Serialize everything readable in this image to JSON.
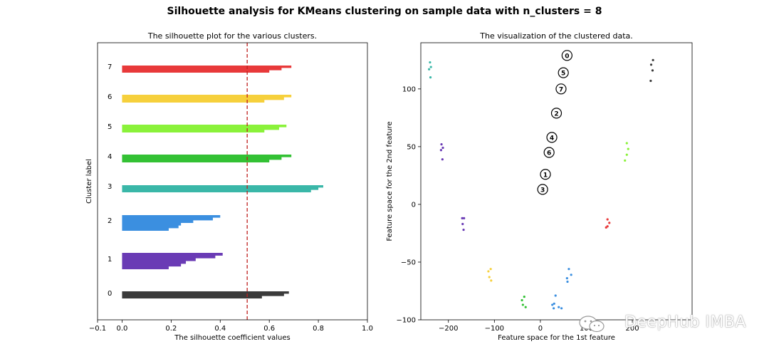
{
  "suptitle": "Silhouette analysis for KMeans clustering on sample data with n_clusters = 8",
  "watermark": "DeepHub IMBA",
  "chart_data": [
    {
      "type": "area",
      "title": "The silhouette plot for the various clusters.",
      "xlabel": "The silhouette coefficient values",
      "ylabel": "Cluster label",
      "xlim": [
        -0.1,
        1.0
      ],
      "xticks": [
        "−0.1",
        "0.0",
        "0.2",
        "0.4",
        "0.6",
        "0.8",
        "1.0"
      ],
      "xtick_values": [
        -0.1,
        0.0,
        0.2,
        0.4,
        0.6,
        0.8,
        1.0
      ],
      "average_silhouette": 0.51,
      "average_line_color": "#c0211f",
      "clusters": [
        {
          "label": "0",
          "color": "#3b3b3b",
          "size": 3,
          "values": [
            0.68,
            0.66,
            0.57
          ]
        },
        {
          "label": "1",
          "color": "#6a3bb5",
          "size": 6,
          "values": [
            0.41,
            0.38,
            0.3,
            0.26,
            0.24,
            0.19
          ]
        },
        {
          "label": "2",
          "color": "#3b8fe0",
          "size": 6,
          "values": [
            0.4,
            0.37,
            0.29,
            0.24,
            0.23,
            0.19
          ]
        },
        {
          "label": "3",
          "color": "#3ab7a8",
          "size": 3,
          "values": [
            0.82,
            0.8,
            0.77
          ]
        },
        {
          "label": "4",
          "color": "#33c134",
          "size": 3,
          "values": [
            0.69,
            0.65,
            0.6
          ]
        },
        {
          "label": "5",
          "color": "#8af23a",
          "size": 3,
          "values": [
            0.67,
            0.64,
            0.58
          ]
        },
        {
          "label": "6",
          "color": "#f6d03c",
          "size": 3,
          "values": [
            0.69,
            0.66,
            0.58
          ]
        },
        {
          "label": "7",
          "color": "#e8393a",
          "size": 3,
          "values": [
            0.69,
            0.65,
            0.6
          ]
        }
      ],
      "legend": "none",
      "grid": false
    },
    {
      "type": "scatter",
      "title": "The visualization of the clustered data.",
      "xlabel": "Feature space for the 1st feature",
      "ylabel": "Feature space for the 2nd feature",
      "xlim": [
        -260,
        330
      ],
      "ylim": [
        -100,
        140
      ],
      "xticks": [
        "−200",
        "−100",
        "0",
        "100",
        "200"
      ],
      "xtick_values": [
        -200,
        -100,
        0,
        100,
        200
      ],
      "yticks": [
        "−100",
        "−50",
        "0",
        "50",
        "100"
      ],
      "ytick_values": [
        -100,
        -50,
        0,
        50,
        100
      ],
      "grid": false,
      "legend": "none",
      "points": [
        {
          "x": -240,
          "y": 123,
          "c": 3
        },
        {
          "x": -238,
          "y": 119,
          "c": 3
        },
        {
          "x": -242,
          "y": 117,
          "c": 3
        },
        {
          "x": -239,
          "y": 110,
          "c": 3
        },
        {
          "x": -215,
          "y": 52,
          "c": 1
        },
        {
          "x": -212,
          "y": 49,
          "c": 1
        },
        {
          "x": -216,
          "y": 47,
          "c": 1
        },
        {
          "x": -213,
          "y": 39,
          "c": 1
        },
        {
          "x": -170,
          "y": -12,
          "c": 1
        },
        {
          "x": -166,
          "y": -12,
          "c": 1
        },
        {
          "x": -169,
          "y": -17,
          "c": 1
        },
        {
          "x": -167,
          "y": -22,
          "c": 1
        },
        {
          "x": -113,
          "y": -58,
          "c": 6
        },
        {
          "x": -108,
          "y": -56,
          "c": 6
        },
        {
          "x": -111,
          "y": -63,
          "c": 6
        },
        {
          "x": -107,
          "y": -66,
          "c": 6
        },
        {
          "x": -40,
          "y": -83,
          "c": 4
        },
        {
          "x": -35,
          "y": -80,
          "c": 4
        },
        {
          "x": -38,
          "y": -87,
          "c": 4
        },
        {
          "x": -32,
          "y": -89,
          "c": 4
        },
        {
          "x": 33,
          "y": -79,
          "c": 2
        },
        {
          "x": 30,
          "y": -86,
          "c": 2
        },
        {
          "x": 26,
          "y": -87,
          "c": 2
        },
        {
          "x": 29,
          "y": -90,
          "c": 2
        },
        {
          "x": 46,
          "y": -90,
          "c": 2
        },
        {
          "x": 40,
          "y": -89,
          "c": 2
        },
        {
          "x": 62,
          "y": -56,
          "c": 2
        },
        {
          "x": 67,
          "y": -61,
          "c": 2
        },
        {
          "x": 58,
          "y": -64,
          "c": 2
        },
        {
          "x": 59,
          "y": -67,
          "c": 2
        },
        {
          "x": 146,
          "y": -13,
          "c": 7
        },
        {
          "x": 150,
          "y": -16,
          "c": 7
        },
        {
          "x": 146,
          "y": -19,
          "c": 7
        },
        {
          "x": 143,
          "y": -20,
          "c": 7
        },
        {
          "x": 188,
          "y": 53,
          "c": 5
        },
        {
          "x": 191,
          "y": 48,
          "c": 5
        },
        {
          "x": 188,
          "y": 43,
          "c": 5
        },
        {
          "x": 184,
          "y": 38,
          "c": 5
        },
        {
          "x": 245,
          "y": 125,
          "c": 0
        },
        {
          "x": 241,
          "y": 121,
          "c": 0
        },
        {
          "x": 244,
          "y": 116,
          "c": 0
        },
        {
          "x": 240,
          "y": 107,
          "c": 0
        }
      ],
      "centers": [
        {
          "label": "0",
          "x": 58,
          "y": 129
        },
        {
          "label": "5",
          "x": 50,
          "y": 114
        },
        {
          "label": "7",
          "x": 45,
          "y": 100
        },
        {
          "label": "2",
          "x": 35,
          "y": 79
        },
        {
          "label": "4",
          "x": 25,
          "y": 58
        },
        {
          "label": "6",
          "x": 19,
          "y": 45
        },
        {
          "label": "1",
          "x": 11,
          "y": 26
        },
        {
          "label": "3",
          "x": 5,
          "y": 13
        }
      ],
      "cluster_colors": [
        "#3b3b3b",
        "#6a3bb5",
        "#3b8fe0",
        "#3ab7a8",
        "#33c134",
        "#8af23a",
        "#f6d03c",
        "#e8393a"
      ]
    }
  ]
}
